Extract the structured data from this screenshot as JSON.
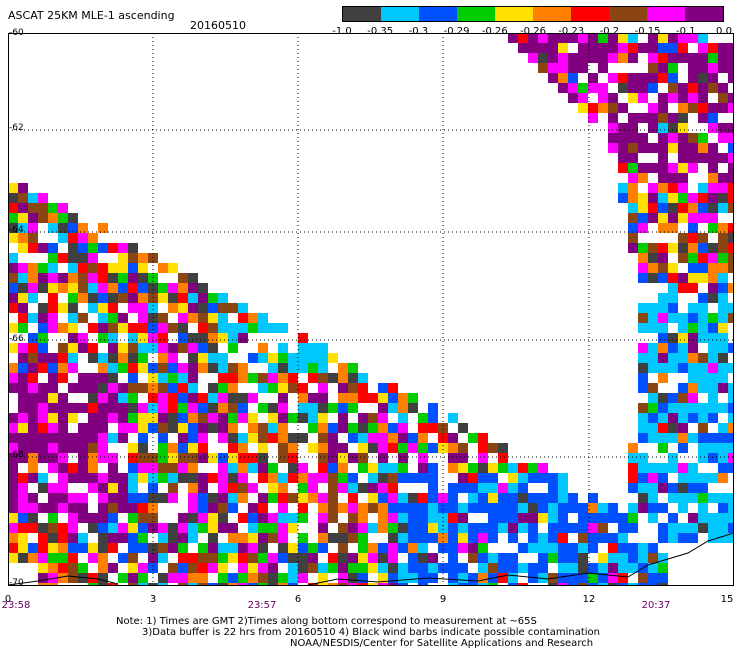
{
  "header": {
    "title": "ASCAT 25KM MLE-1 ascending",
    "date": "20160510"
  },
  "colorbar": {
    "colors": [
      "#404040",
      "#00c8ff",
      "#0050ff",
      "#00cc00",
      "#ffe000",
      "#ff8000",
      "#ff0000",
      "#8b4513",
      "#ff00ff",
      "#800080"
    ],
    "labels": [
      "-1.0",
      "-0.35",
      "-0.3",
      "-0.29",
      "-0.26",
      "-0.26",
      "-0.23",
      "-0.2",
      "-0.15",
      "-0.1",
      "0.0"
    ]
  },
  "map": {
    "lat_labels": [
      "-60",
      "-62",
      "-64",
      "-66",
      "-68",
      "-70"
    ],
    "lon_ticks": [
      "0",
      "3",
      "6",
      "9",
      "12",
      "15"
    ],
    "time_labels": [
      "23:58",
      "23:57",
      "20:37"
    ]
  },
  "note": {
    "line1": "Note: 1) Times are GMT 2)Times along bottom correspond to measurement at ~65S",
    "line2": "3)Data buffer is 22 hrs from 20160510 4) Black wind barbs indicate possible contamination",
    "line3": "NOAA/NESDIS/Center for Satellite Applications and Research"
  }
}
